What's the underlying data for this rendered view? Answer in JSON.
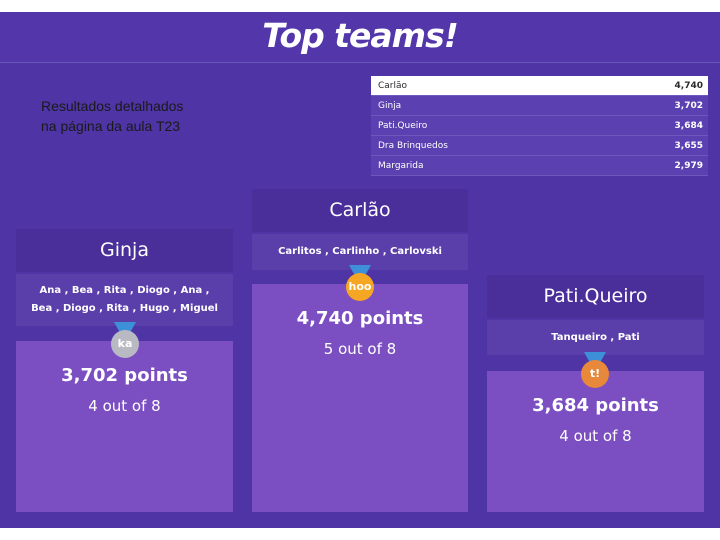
{
  "page": {
    "title": "Top teams!",
    "note_line1": "Resultados detalhados",
    "note_line2": "na página da aula T23"
  },
  "leaderboard": [
    {
      "name": "Carlão",
      "score": "4,740"
    },
    {
      "name": "Ginja",
      "score": "3,702"
    },
    {
      "name": "Pati.Queiro",
      "score": "3,684"
    },
    {
      "name": "Dra Brinquedos",
      "score": "3,655"
    },
    {
      "name": "Margarida",
      "score": "2,979"
    }
  ],
  "podium": {
    "first": {
      "name": "Carlão",
      "members": "Carlitos , Carlinho , Carlovski",
      "badge": "hoo",
      "badge_color": "#f5a623",
      "points": "4,740 points",
      "correct": "5 out of 8"
    },
    "second": {
      "name": "Ginja",
      "members_line1": "Ana , Bea , Rita , Diogo , Ana ,",
      "members_line2": "Bea , Diogo , Rita , Hugo , Miguel",
      "badge": "ka",
      "badge_color": "#b9b9c4",
      "points": "3,702 points",
      "correct": "4 out of 8"
    },
    "third": {
      "name": "Pati.Queiro",
      "members": "Tanqueiro , Pati",
      "badge": "t!",
      "badge_color": "#e8883a",
      "points": "3,684 points",
      "correct": "4 out of 8"
    }
  }
}
